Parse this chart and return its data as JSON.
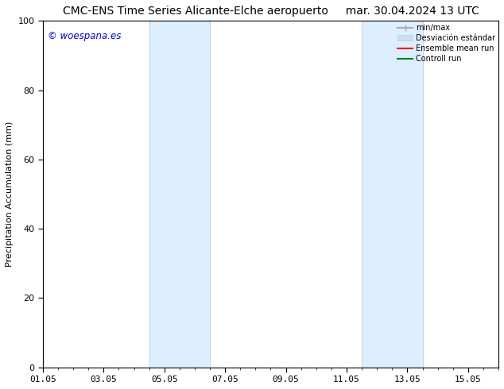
{
  "title_left": "CMC-ENS Time Series Alicante-Elche aeropuerto",
  "title_right": "mar. 30.04.2024 13 UTC",
  "ylabel": "Precipitation Accumulation (mm)",
  "ylim": [
    0,
    100
  ],
  "yticks": [
    0,
    20,
    40,
    60,
    80,
    100
  ],
  "xtick_labels": [
    "01.05",
    "03.05",
    "05.05",
    "07.05",
    "09.05",
    "11.05",
    "13.05",
    "15.05"
  ],
  "xtick_positions": [
    0,
    2,
    4,
    6,
    8,
    10,
    12,
    14
  ],
  "xlim": [
    0,
    15
  ],
  "shaded_bands": [
    {
      "x_start": 3.5,
      "x_end": 5.5
    },
    {
      "x_start": 10.5,
      "x_end": 12.5
    }
  ],
  "band_color": "#ddeeff",
  "band_edge_color": "#b8cfe0",
  "watermark_text": "© woespana.es",
  "watermark_color": "#0000cc",
  "legend_entries": [
    {
      "label": "min/max",
      "color": "#aaaaaa",
      "lw": 1.5
    },
    {
      "label": "Desviación estándar",
      "color": "#ccddef",
      "lw": 6
    },
    {
      "label": "Ensemble mean run",
      "color": "red",
      "lw": 1.5
    },
    {
      "label": "Controll run",
      "color": "green",
      "lw": 1.5
    }
  ],
  "bg_color": "#ffffff",
  "title_fontsize": 10,
  "axis_fontsize": 8,
  "tick_fontsize": 8
}
